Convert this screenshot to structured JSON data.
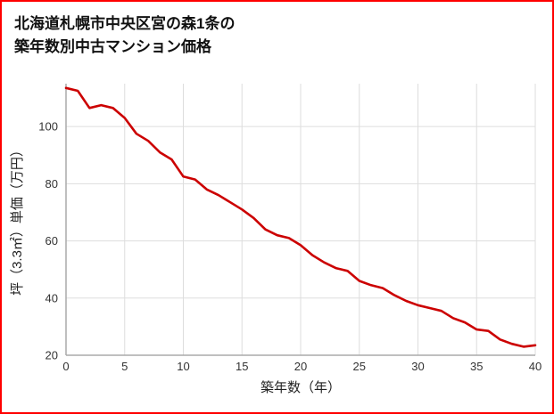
{
  "page": {
    "border_color": "#ff0000",
    "background_color": "#ffffff"
  },
  "title": {
    "line1": "北海道札幌市中央区宮の森1条の",
    "line2": "築年数別中古マンション価格"
  },
  "chart_data": {
    "type": "line",
    "title": "北海道札幌市中央区宮の森1条の築年数別中古マンション価格",
    "xlabel": "築年数（年）",
    "ylabel": "坪（3.3㎡）単価（万円）",
    "x": [
      0,
      1,
      2,
      3,
      4,
      5,
      6,
      7,
      8,
      9,
      10,
      11,
      12,
      13,
      14,
      15,
      16,
      17,
      18,
      19,
      20,
      21,
      22,
      23,
      24,
      25,
      26,
      27,
      28,
      29,
      30,
      31,
      32,
      33,
      34,
      35,
      36,
      37,
      38,
      39,
      40
    ],
    "values": [
      113.5,
      112.5,
      106.5,
      107.5,
      106.5,
      103,
      97.5,
      95,
      91,
      88.5,
      82.5,
      81.5,
      78,
      76,
      73.5,
      71,
      68,
      64,
      62,
      61,
      58.5,
      55,
      52.5,
      50.5,
      49.5,
      46,
      44.5,
      43.5,
      41,
      39,
      37.5,
      36.5,
      35.5,
      33,
      31.5,
      29,
      28.5,
      25.5,
      24,
      23,
      23.5
    ],
    "xlim": [
      0,
      40
    ],
    "ylim": [
      20,
      115
    ],
    "x_ticks": [
      0,
      5,
      10,
      15,
      20,
      25,
      30,
      35,
      40
    ],
    "y_ticks": [
      20,
      40,
      60,
      80,
      100
    ],
    "grid": true,
    "legend": "none",
    "line_color": "#cc0000",
    "grid_color": "#dddddd",
    "axis_color": "#aaaaaa",
    "tick_label_color": "#333333",
    "axis_label_color": "#222222"
  }
}
